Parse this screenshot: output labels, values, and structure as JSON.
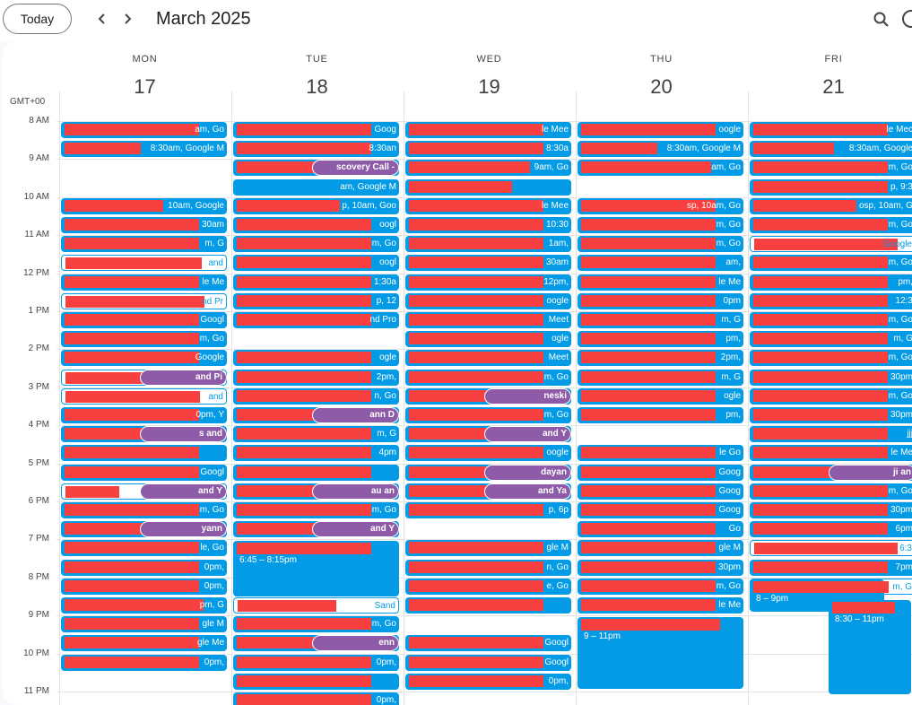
{
  "toolbar": {
    "today_label": "Today",
    "prev_icon": "‹",
    "next_icon": "›",
    "month_title": "March 2025"
  },
  "timezone": "GMT+00",
  "days": [
    {
      "name": "MON",
      "num": "17"
    },
    {
      "name": "TUE",
      "num": "18"
    },
    {
      "name": "WED",
      "num": "19"
    },
    {
      "name": "THU",
      "num": "20"
    },
    {
      "name": "FRI",
      "num": "21"
    }
  ],
  "hours": [
    "8 AM",
    "9 AM",
    "10 AM",
    "11 AM",
    "12 PM",
    "1 PM",
    "2 PM",
    "3 PM",
    "4 PM",
    "5 PM",
    "6 PM",
    "7 PM",
    "8 PM",
    "9 PM",
    "10 PM",
    "11 PM"
  ],
  "events": {
    "mon": [
      "am, Go",
      "8:30am, Google M",
      "10am, Google",
      "30am",
      "m, G",
      "and",
      "le Me",
      "nd Pr",
      "Googl",
      "m, Go",
      "Google",
      "and Pi",
      "and",
      "0pm, Y",
      "s and",
      "",
      "Googl",
      "and Y",
      "m, Go",
      "yann",
      "le, Go",
      "0pm,",
      "0pm,",
      "pm, G",
      "gle M",
      "gle Me",
      "0pm,"
    ],
    "tue": [
      "Goog",
      "8:30an",
      "scovery Call -",
      "am, Google M",
      "p, 10am, Goo",
      "oogl",
      "m, Go",
      "oogl",
      "1:30a",
      "p, 12",
      "nd Pro",
      "ogle",
      "2pm,",
      "n, Go",
      "ann D",
      "m, G",
      "4pm",
      "",
      "au an",
      "m, Go",
      "and Y",
      "6:45 – 8:15pm",
      "Sand",
      "m, Go",
      "enn",
      "0pm,",
      "",
      "0pm,"
    ],
    "wed": [
      "le Mee",
      "8:30a",
      "9am, Go",
      "",
      "le Mee",
      "10:30",
      "1am,",
      "30am",
      "12pm,",
      "oogle",
      "Meet",
      "ogle",
      "Meet",
      "m, Go",
      "neski",
      "m, Go",
      "and Y",
      "oogle",
      "dayan",
      "and Ya",
      "p, 6p",
      "gle M",
      "n, Go",
      "e, Go",
      "",
      "Googl",
      "Googl",
      "0pm,"
    ],
    "thu": [
      "oogle",
      "8:30am, Google M",
      "am, Go",
      "sp, 10am, Go",
      "m, Go",
      "m, Go",
      "am,",
      "le Me",
      "0pm",
      "m, G",
      "pm,",
      "2pm,",
      "m, G",
      "ogle",
      "pm,",
      "le Go",
      "Goog",
      "Goog",
      "Goog",
      "Go",
      "gle M",
      "30pm",
      "m, Go",
      "le Me",
      "9 – 11pm"
    ],
    "fri": [
      "le Mec",
      "8:30am, Google",
      "m, Go",
      "p, 9:3",
      "osp, 10am, G",
      "m, Go",
      "Google",
      "m, Go",
      "pm,",
      "12:3",
      "m, Go",
      "m, G",
      "m, Go",
      "30pm",
      "m, Go",
      "30pm",
      "jjj",
      "le Me",
      "ji an",
      "m, Go",
      "30pm",
      "6pm",
      "6:3",
      "7pm",
      "m, G",
      "8 – 9pm",
      "8:30 – 11pm"
    ]
  },
  "colors": {
    "event_blue": "#039be5",
    "event_purple": "#8e5ba8",
    "redaction_red": "#f84040"
  }
}
